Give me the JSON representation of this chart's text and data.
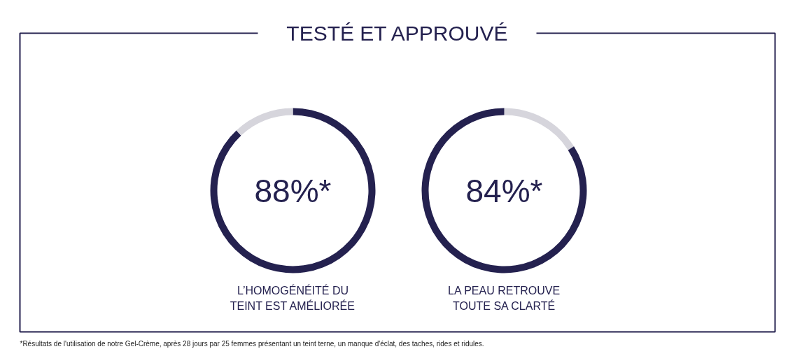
{
  "chart_data": [
    {
      "type": "other",
      "title": "TESTÉ ET APPROUVÉ",
      "annotations": [
        "*Résultats de l'utilisation de notre Gel-Crème, après 28 jours par 25 femmes présentant un teint terne, un manque d'éclat, des taches, rides et ridules."
      ]
    },
    {
      "type": "donut",
      "title": "L’HOMOGÉNÉITÉ DU\nTEINT EST AMÉLIORÉE",
      "categories": [
        null,
        null
      ],
      "values": [
        88,
        12
      ],
      "colors": [
        "#24214f",
        "#d6d5dc"
      ],
      "annotations": [
        "88%*"
      ]
    },
    {
      "type": "donut",
      "title": "LA PEAU RETROUVE\nTOUTE SA CLARTÉ",
      "categories": [
        null,
        null
      ],
      "values": [
        16,
        84
      ],
      "colors": [
        "#d6d5dc",
        "#24214f"
      ],
      "annotations": [
        "84%*"
      ]
    }
  ]
}
